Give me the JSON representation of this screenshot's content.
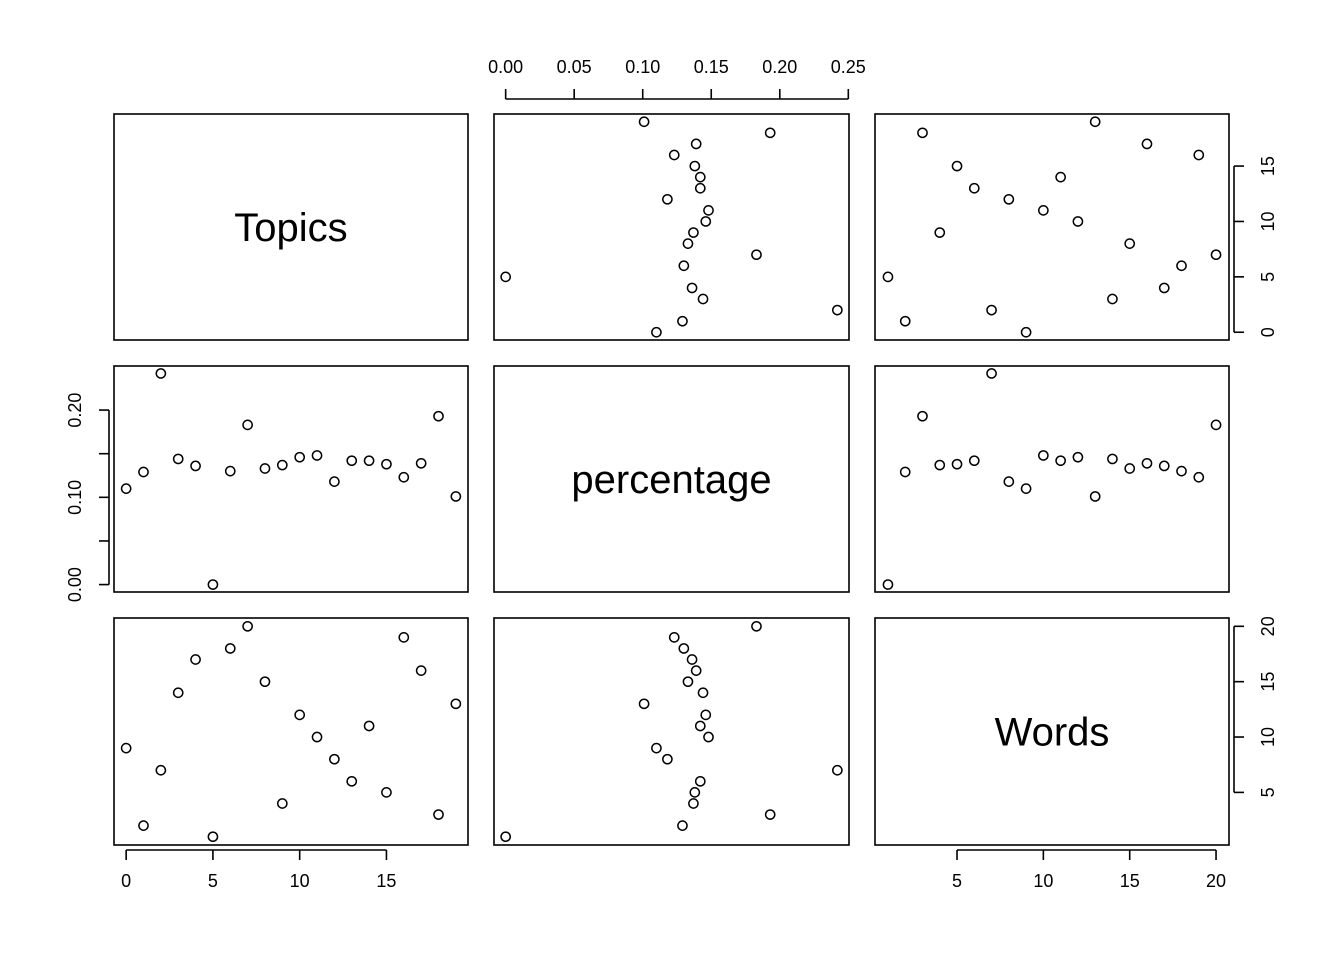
{
  "chart_data": {
    "type": "scatter",
    "variables": [
      "Topics",
      "percentage",
      "Words"
    ],
    "records": [
      {
        "Topics": 0,
        "percentage": 0.11,
        "Words": 9
      },
      {
        "Topics": 1,
        "percentage": 0.129,
        "Words": 2
      },
      {
        "Topics": 2,
        "percentage": 0.242,
        "Words": 7
      },
      {
        "Topics": 3,
        "percentage": 0.144,
        "Words": 14
      },
      {
        "Topics": 4,
        "percentage": 0.136,
        "Words": 17
      },
      {
        "Topics": 5,
        "percentage": 0.0,
        "Words": 1
      },
      {
        "Topics": 6,
        "percentage": 0.13,
        "Words": 18
      },
      {
        "Topics": 7,
        "percentage": 0.183,
        "Words": 20
      },
      {
        "Topics": 8,
        "percentage": 0.133,
        "Words": 15
      },
      {
        "Topics": 9,
        "percentage": 0.137,
        "Words": 4
      },
      {
        "Topics": 10,
        "percentage": 0.146,
        "Words": 12
      },
      {
        "Topics": 11,
        "percentage": 0.148,
        "Words": 10
      },
      {
        "Topics": 12,
        "percentage": 0.118,
        "Words": 8
      },
      {
        "Topics": 13,
        "percentage": 0.142,
        "Words": 6
      },
      {
        "Topics": 14,
        "percentage": 0.142,
        "Words": 11
      },
      {
        "Topics": 15,
        "percentage": 0.138,
        "Words": 5
      },
      {
        "Topics": 16,
        "percentage": 0.123,
        "Words": 19
      },
      {
        "Topics": 17,
        "percentage": 0.139,
        "Words": 16
      },
      {
        "Topics": 18,
        "percentage": 0.193,
        "Words": 3
      },
      {
        "Topics": 19,
        "percentage": 0.101,
        "Words": 13
      }
    ],
    "ranges": {
      "Topics": [
        -0.7,
        19.7
      ],
      "percentage": [
        -0.0085,
        0.2505
      ],
      "Words": [
        0.25,
        20.75
      ]
    },
    "ticks": {
      "Topics": [
        "0",
        "5",
        "10",
        "15"
      ],
      "percentage_bottom": [
        "0.00",
        "0.05",
        "0.10",
        "0.15",
        "0.20",
        "0.25"
      ],
      "percentage_left": [
        "0.00",
        "0.10",
        "0.20"
      ],
      "Words": [
        "5",
        "10",
        "15",
        "20"
      ]
    },
    "grid": false,
    "legend": "none"
  }
}
